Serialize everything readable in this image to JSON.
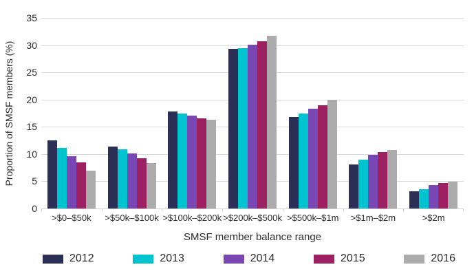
{
  "chart_data": {
    "type": "bar",
    "title": "",
    "categories": [
      ">$0–$50k",
      ">$50k–$100k",
      ">$100k–$200k",
      ">$200k–$500k",
      ">$500k–$1m",
      ">$1m–$2m",
      ">$2m"
    ],
    "series": [
      {
        "name": "2012",
        "color": "#2c2f55",
        "values": [
          12.5,
          11.4,
          17.8,
          29.3,
          16.8,
          8.1,
          3.2
        ]
      },
      {
        "name": "2013",
        "color": "#00c3d0",
        "values": [
          11.1,
          10.9,
          17.4,
          29.4,
          17.5,
          9.0,
          3.6
        ]
      },
      {
        "name": "2014",
        "color": "#7847b4",
        "values": [
          9.6,
          10.1,
          17.1,
          30.1,
          18.3,
          9.9,
          4.3
        ]
      },
      {
        "name": "2015",
        "color": "#9d2162",
        "values": [
          8.5,
          9.2,
          16.6,
          30.7,
          19.0,
          10.3,
          4.7
        ]
      },
      {
        "name": "2016",
        "color": "#acacac",
        "values": [
          7.0,
          8.4,
          16.3,
          31.7,
          20.0,
          10.8,
          4.9
        ]
      }
    ],
    "xlabel": "SMSF member balance range",
    "ylabel": "Proportion of SMSF members (%)",
    "ylim": [
      0,
      35
    ],
    "yticks": [
      0,
      5,
      10,
      15,
      20,
      25,
      30,
      35
    ],
    "grid": true,
    "legend_position": "bottom",
    "colors": {
      "gridline": "#d8d8d8",
      "axis_line": "#cfcfcf",
      "text": "#2b2b2b",
      "background": "#ffffff"
    }
  }
}
